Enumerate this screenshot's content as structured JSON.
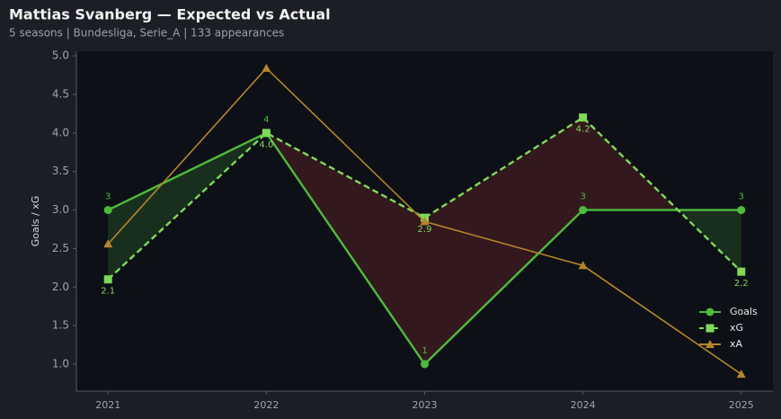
{
  "chart_data": {
    "type": "line",
    "title": "Mattias Svanberg — Expected vs Actual",
    "subtitle": "5 seasons | Bundesliga, Serie_A | 133 appearances",
    "y_label": "Goals / xG",
    "x": [
      2021,
      2022,
      2023,
      2024,
      2025
    ],
    "xlim": [
      2020.8,
      2025.2
    ],
    "xticks": [
      2021,
      2022,
      2023,
      2024,
      2025
    ],
    "ylim": [
      0.65,
      5.06
    ],
    "yticks": [
      {
        "value": 1,
        "label": "1.0"
      },
      1.5,
      {
        "value": 2,
        "label": "2.0"
      },
      2.5,
      {
        "value": 3,
        "label": "3.0"
      },
      3.5,
      {
        "value": 4,
        "label": "4.0"
      },
      4.5,
      {
        "value": 5,
        "label": "5.0"
      }
    ],
    "legend": "lower right",
    "series": [
      {
        "name": "Goals",
        "color": "#4dbb3c",
        "marker": "circle",
        "dashed": false,
        "values": [
          3,
          4,
          1,
          3,
          3
        ]
      },
      {
        "name": "xG",
        "color": "#7fd85a",
        "marker": "square",
        "dashed": true,
        "values": [
          2.1,
          4.0,
          2.9,
          4.2,
          2.2
        ],
        "value_labels": [
          "2.1",
          "4.0",
          "2.9",
          "4.2",
          "2.2"
        ]
      },
      {
        "name": "xA",
        "color": "#b3862a",
        "marker": "triangle",
        "dashed": false,
        "values": [
          2.56,
          4.84,
          2.85,
          2.28,
          0.87
        ]
      }
    ]
  }
}
